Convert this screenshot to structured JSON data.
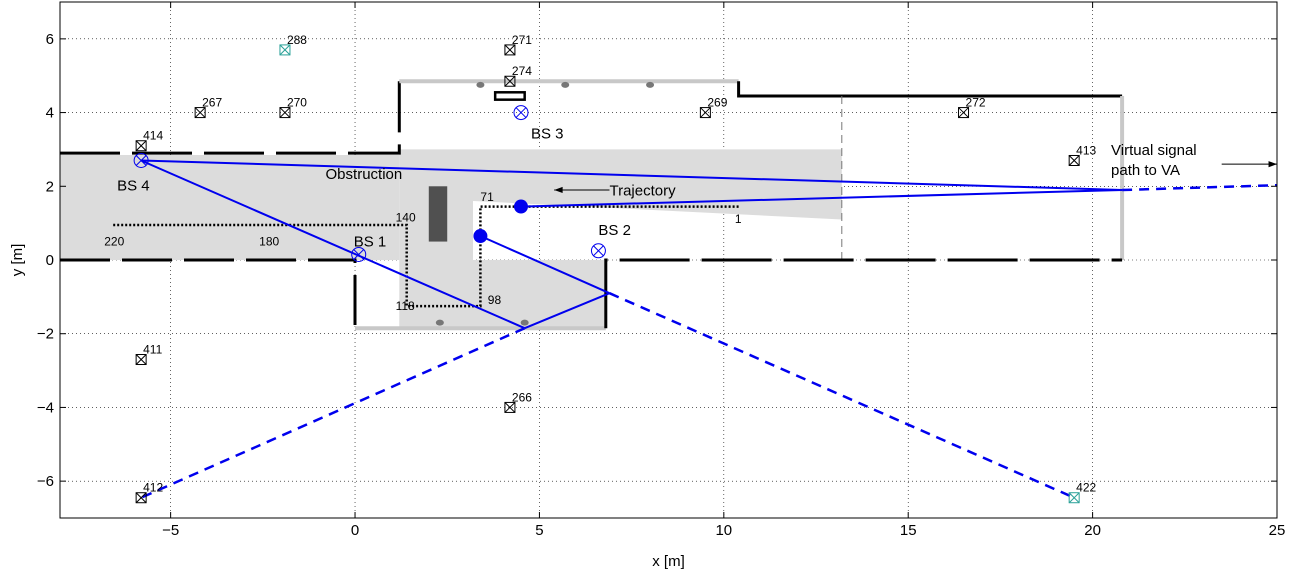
{
  "chart_data": {
    "type": "scatter",
    "xlabel": "x [m]",
    "ylabel": "y [m]",
    "xlim": [
      -8,
      25
    ],
    "ylim": [
      -7,
      7
    ],
    "xticks": [
      -5,
      0,
      5,
      10,
      15,
      20,
      25
    ],
    "yticks": [
      -6,
      -4,
      -2,
      0,
      2,
      4,
      6
    ],
    "grid": true,
    "colors": {
      "path": "#0000ee",
      "wall": "#000000",
      "wall_light": "#c8c8c8",
      "area": "#dcdcdc",
      "obstruction": "#505050",
      "trajectory": "#000000",
      "va_cyan": "#2aa198"
    },
    "virtual_anchors": [
      {
        "label": "288",
        "x": -1.9,
        "y": 5.7,
        "color": "#2aa198"
      },
      {
        "label": "271",
        "x": 4.2,
        "y": 5.7
      },
      {
        "label": "274",
        "x": 4.2,
        "y": 4.85
      },
      {
        "label": "267",
        "x": -4.2,
        "y": 4.0
      },
      {
        "label": "270",
        "x": -1.9,
        "y": 4.0
      },
      {
        "label": "269",
        "x": 9.5,
        "y": 4.0
      },
      {
        "label": "272",
        "x": 16.5,
        "y": 4.0
      },
      {
        "label": "414",
        "x": -5.8,
        "y": 3.1
      },
      {
        "label": "413",
        "x": 19.5,
        "y": 2.7
      },
      {
        "label": "411",
        "x": -5.8,
        "y": -2.7
      },
      {
        "label": "266",
        "x": 4.2,
        "y": -4.0
      },
      {
        "label": "412",
        "x": -5.8,
        "y": -6.45
      },
      {
        "label": "422",
        "x": 19.5,
        "y": -6.45,
        "color": "#2aa198"
      }
    ],
    "base_stations": [
      {
        "label": "BS 1",
        "x": 0.1,
        "y": 0.15
      },
      {
        "label": "BS 2",
        "x": 6.6,
        "y": 0.25
      },
      {
        "label": "BS 3",
        "x": 4.5,
        "y": 4.0
      },
      {
        "label": "BS 4",
        "x": -5.8,
        "y": 2.7
      }
    ],
    "trajectory_labels": [
      {
        "label": "1",
        "x": 10.3,
        "y": 1.0
      },
      {
        "label": "71",
        "x": 3.4,
        "y": 1.6
      },
      {
        "label": "98",
        "x": 3.6,
        "y": -1.2
      },
      {
        "label": "118",
        "x": 1.1,
        "y": -1.35
      },
      {
        "label": "140",
        "x": 1.1,
        "y": 1.05
      },
      {
        "label": "180",
        "x": -2.6,
        "y": 0.4
      },
      {
        "label": "220",
        "x": -6.8,
        "y": 0.4
      }
    ],
    "trajectory_path": [
      [
        10.4,
        1.45
      ],
      [
        3.4,
        1.45
      ],
      [
        3.4,
        -1.25
      ],
      [
        1.4,
        -1.25
      ],
      [
        1.4,
        0.95
      ],
      [
        -6.6,
        0.95
      ]
    ],
    "agent_positions": [
      {
        "x": 4.5,
        "y": 1.45
      },
      {
        "x": 3.4,
        "y": 0.65
      }
    ],
    "signal_paths": [
      {
        "style": "solid",
        "points": [
          [
            -5.8,
            2.7
          ],
          [
            20.8,
            1.9
          ]
        ]
      },
      {
        "style": "solid",
        "points": [
          [
            4.5,
            1.45
          ],
          [
            20.8,
            1.9
          ]
        ]
      },
      {
        "style": "dashed",
        "points": [
          [
            20.8,
            1.9
          ],
          [
            25,
            2.03
          ]
        ]
      },
      {
        "style": "solid",
        "points": [
          [
            -5.8,
            2.7
          ],
          [
            4.6,
            -1.85
          ]
        ]
      },
      {
        "style": "solid",
        "points": [
          [
            4.6,
            -1.85
          ],
          [
            6.9,
            -0.9
          ]
        ]
      },
      {
        "style": "dashed",
        "points": [
          [
            4.6,
            -1.85
          ],
          [
            -5.8,
            -6.45
          ]
        ]
      },
      {
        "style": "solid",
        "points": [
          [
            3.4,
            0.65
          ],
          [
            6.9,
            -0.9
          ]
        ]
      },
      {
        "style": "dashed",
        "points": [
          [
            6.9,
            -0.9
          ],
          [
            19.5,
            -6.45
          ]
        ]
      }
    ],
    "annotations": [
      {
        "text": "Obstruction",
        "x": -0.8,
        "y": 2.2
      },
      {
        "text": "Trajectory",
        "x": 6.9,
        "y": 1.75
      },
      {
        "text": "Virtual signal",
        "x": 20.5,
        "y": 2.85
      },
      {
        "text": "path to VA",
        "x": 20.5,
        "y": 2.3
      }
    ]
  }
}
